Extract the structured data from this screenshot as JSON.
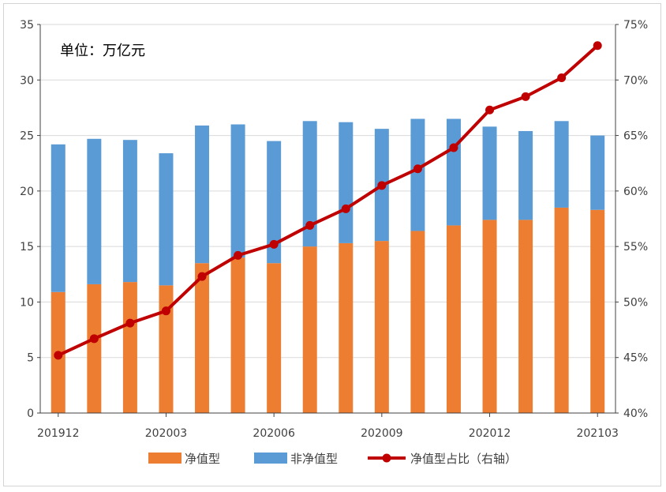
{
  "chart_data": {
    "type": "bar",
    "stacked": true,
    "unit_label": "单位：万亿元",
    "categories": [
      "201912",
      "202001",
      "202002",
      "202003",
      "202004",
      "202005",
      "202006",
      "202007",
      "202008",
      "202009",
      "202010",
      "202011",
      "202012",
      "202101",
      "202102",
      "202103"
    ],
    "x_tick_labels": [
      "201912",
      "202003",
      "202006",
      "202009",
      "202012",
      "202103"
    ],
    "x_tick_indices": [
      0,
      3,
      6,
      9,
      12,
      15
    ],
    "series": [
      {
        "name": "净值型",
        "type": "bar",
        "axis": "left",
        "color": "#ED7D31",
        "values": [
          10.9,
          11.6,
          11.8,
          11.5,
          13.5,
          14.0,
          13.5,
          15.0,
          15.3,
          15.5,
          16.4,
          16.9,
          17.4,
          17.4,
          18.5,
          18.3
        ]
      },
      {
        "name": "非净值型",
        "type": "bar",
        "axis": "left",
        "color": "#5B9BD5",
        "values": [
          13.3,
          13.1,
          12.8,
          11.9,
          12.4,
          12.0,
          11.0,
          11.3,
          10.9,
          10.1,
          10.1,
          9.6,
          8.4,
          8.0,
          7.8,
          6.7
        ]
      },
      {
        "name": "净值型占比（右轴）",
        "type": "line",
        "axis": "right",
        "color": "#C00000",
        "values": [
          45.2,
          46.7,
          48.1,
          49.2,
          52.3,
          54.2,
          55.2,
          56.9,
          58.4,
          60.5,
          62.0,
          63.9,
          67.3,
          68.5,
          70.2,
          73.1
        ]
      }
    ],
    "y_left": {
      "ylim": [
        0,
        35
      ],
      "ticks": [
        "0",
        "5",
        "10",
        "15",
        "20",
        "25",
        "30",
        "35"
      ]
    },
    "y_right": {
      "ylim": [
        40,
        75
      ],
      "ticks": [
        "40%",
        "45%",
        "50%",
        "55%",
        "60%",
        "65%",
        "70%",
        "75%"
      ]
    },
    "grid": true,
    "legend_position": "bottom"
  }
}
